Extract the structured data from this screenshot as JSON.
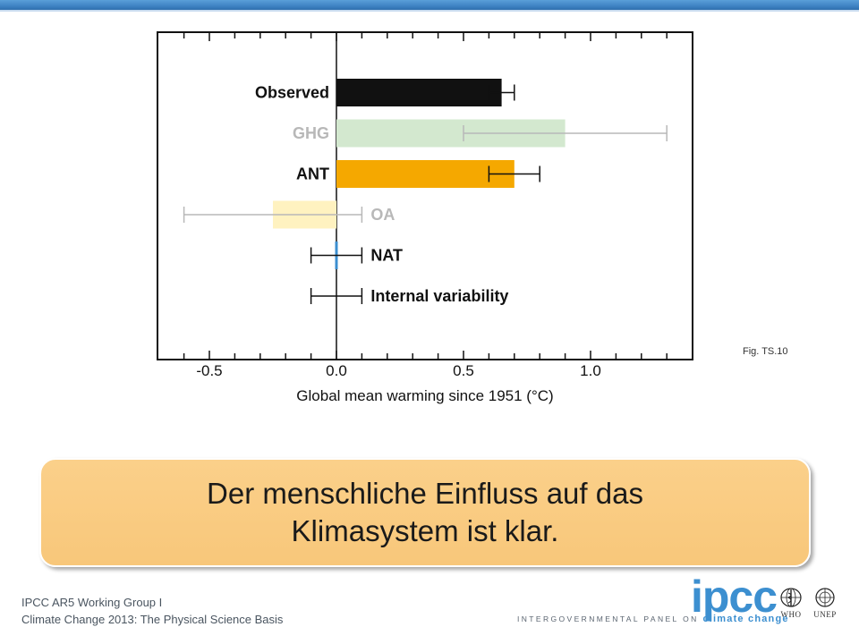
{
  "slide": {
    "fig_label": "Fig. TS.10",
    "message_line1": "Der menschliche Einfluss auf das",
    "message_line2": "Klimasystem ist klar.",
    "footer_line1": "IPCC AR5 Working Group I",
    "footer_line2": "Climate Change 2013:  The Physical Science Basis",
    "logo_text": "ipcc",
    "logo_tagline_prefix": "INTERGOVERNMENTAL PANEL ON ",
    "logo_tagline_highlight": "climate change",
    "org1_name": "WHO",
    "org2_name": "UNEP"
  },
  "colors": {
    "accent_blue": "#3c8fd0",
    "box_orange": "#f8c77a"
  },
  "chart_data": {
    "type": "bar",
    "orientation": "horizontal",
    "xlabel": "Global mean warming since 1951 (°C)",
    "xlim": [
      -0.7,
      1.35
    ],
    "xticks": [
      -0.5,
      0.0,
      0.5,
      1.0
    ],
    "xtick_labels": [
      "-0.5",
      "0.0",
      "0.5",
      "1.0"
    ],
    "grid": false,
    "series": [
      {
        "label": "Observed",
        "value": 0.65,
        "error_low": 0.6,
        "error_high": 0.7,
        "color": "#111111",
        "label_color": "#111111",
        "error_color": "#111111"
      },
      {
        "label": "GHG",
        "value": 0.9,
        "error_low": 0.5,
        "error_high": 1.3,
        "color": "#d3e8cf",
        "label_color": "#b8b8b8",
        "error_color": "#b8b8b8"
      },
      {
        "label": "ANT",
        "value": 0.7,
        "error_low": 0.6,
        "error_high": 0.8,
        "color": "#f5a800",
        "label_color": "#111111",
        "error_color": "#111111"
      },
      {
        "label": "OA",
        "value": -0.25,
        "error_low": -0.6,
        "error_high": 0.1,
        "color": "#fff2c0",
        "label_color": "#b8b8b8",
        "error_color": "#b8b8b8"
      },
      {
        "label": "NAT",
        "value": 0.0,
        "error_low": -0.1,
        "error_high": 0.1,
        "color": "#3c8fd0",
        "label_color": "#111111",
        "error_color": "#111111"
      },
      {
        "label": "Internal variability",
        "value": null,
        "error_low": -0.1,
        "error_high": 0.1,
        "color": "#111111",
        "label_color": "#111111",
        "error_color": "#111111"
      }
    ]
  }
}
